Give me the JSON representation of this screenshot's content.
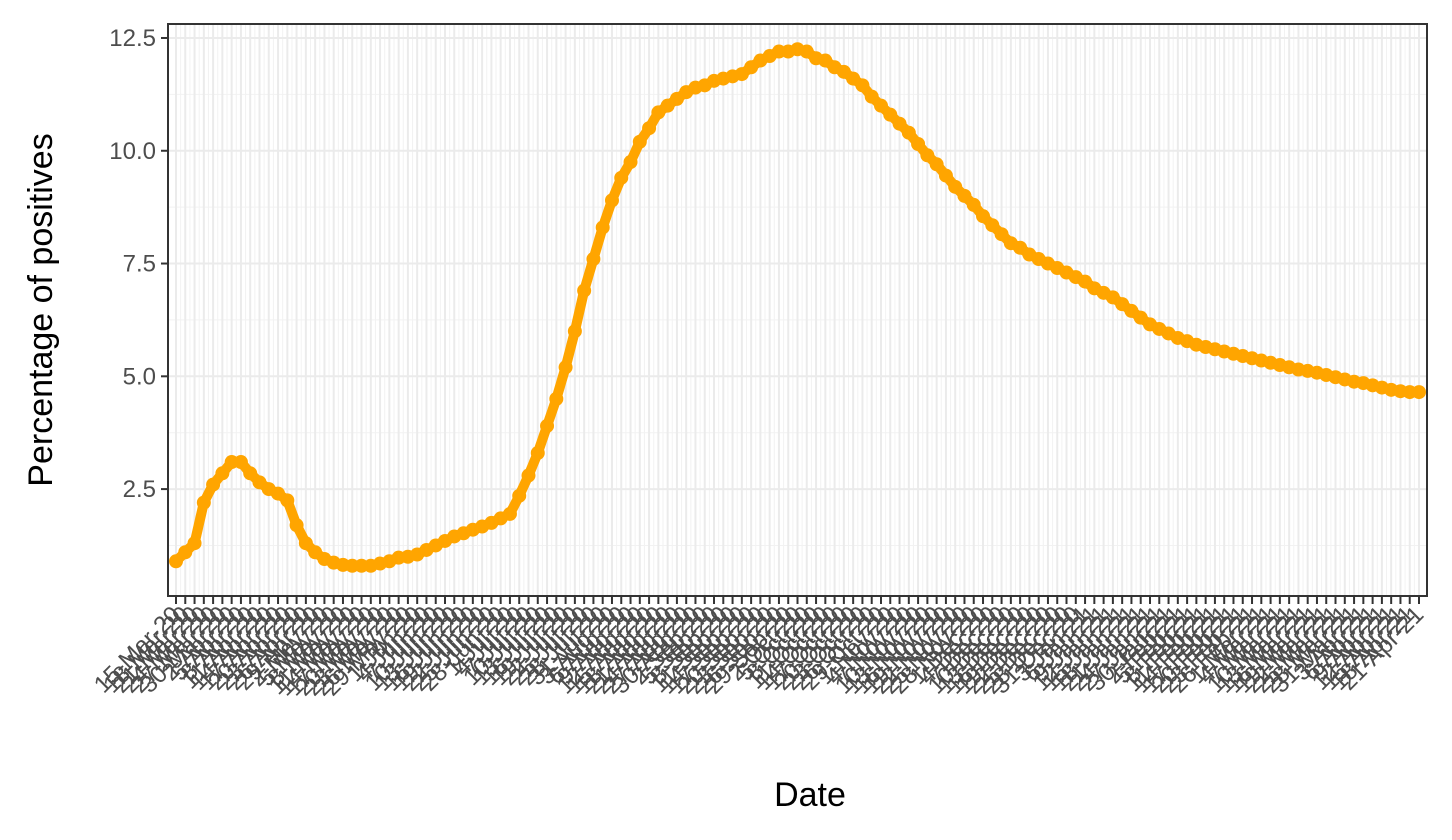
{
  "chart_data": {
    "type": "line",
    "x_label": "Date",
    "y_label": "Percentage of positives",
    "color": "#ffa500",
    "grid": true,
    "categories": [
      "15-Mar-20",
      "18-Mar-20",
      "21-Mar-20",
      "24-Mar-20",
      "27-Mar-20",
      "30-Mar-20",
      "2-Apr-20",
      "5-Apr-20",
      "8-Apr-20",
      "11-Apr-20",
      "14-Apr-20",
      "17-Apr-20",
      "20-Apr-20",
      "23-Apr-20",
      "26-Apr-20",
      "29-Apr-20",
      "2-May-20",
      "5-May-20",
      "8-May-20",
      "11-May-20",
      "14-May-20",
      "17-May-20",
      "20-May-20",
      "23-May-20",
      "26-May-20",
      "29-May-20",
      "1-Jun-20",
      "4-Jun-20",
      "7-Jun-20",
      "10-Jun-20",
      "13-Jun-20",
      "16-Jun-20",
      "19-Jun-20",
      "22-Jun-20",
      "25-Jun-20",
      "28-Jun-20",
      "1-Jul-20",
      "4-Jul-20",
      "7-Jul-20",
      "10-Jul-20",
      "13-Jul-20",
      "16-Jul-20",
      "19-Jul-20",
      "22-Jul-20",
      "25-Jul-20",
      "28-Jul-20",
      "31-Jul-20",
      "3-Aug-20",
      "6-Aug-20",
      "9-Aug-20",
      "12-Aug-20",
      "15-Aug-20",
      "18-Aug-20",
      "21-Aug-20",
      "24-Aug-20",
      "27-Aug-20",
      "30-Aug-20",
      "2-Sep-20",
      "5-Sep-20",
      "8-Sep-20",
      "11-Sep-20",
      "14-Sep-20",
      "17-Sep-20",
      "20-Sep-20",
      "23-Sep-20",
      "26-Sep-20",
      "29-Sep-20",
      "2-Oct-20",
      "5-Oct-20",
      "8-Oct-20",
      "11-Oct-20",
      "14-Oct-20",
      "17-Oct-20",
      "20-Oct-20",
      "23-Oct-20",
      "26-Oct-20",
      "29-Oct-20",
      "1-Nov-20",
      "4-Nov-20",
      "7-Nov-20",
      "10-Nov-20",
      "13-Nov-20",
      "16-Nov-20",
      "19-Nov-20",
      "22-Nov-20",
      "25-Nov-20",
      "28-Nov-20",
      "1-Dec-20",
      "4-Dec-20",
      "7-Dec-20",
      "10-Dec-20",
      "13-Dec-20",
      "16-Dec-20",
      "19-Dec-20",
      "22-Dec-20",
      "25-Dec-20",
      "28-Dec-20",
      "31-Dec-20",
      "3-Jan-21",
      "6-Jan-21",
      "9-Jan-21",
      "12-Jan-21",
      "15-Jan-21",
      "18-Jan-21",
      "21-Jan-21",
      "24-Jan-21",
      "27-Jan-21",
      "30-Jan-21",
      "2-Feb-21",
      "5-Feb-21",
      "8-Feb-21",
      "11-Feb-21",
      "14-Feb-21",
      "17-Feb-21",
      "20-Feb-21",
      "23-Feb-21",
      "26-Feb-21",
      "1-Mar-21",
      "4-Mar-21",
      "7-Mar-21",
      "10-Mar-21",
      "13-Mar-21",
      "16-Mar-21",
      "19-Mar-21",
      "22-Mar-21",
      "25-Mar-21",
      "28-Mar-21",
      "31-Mar-21",
      "3-Apr-21",
      "6-Apr-21",
      "9-Apr-21",
      "12-Apr-21",
      "15-Apr-21",
      "18-Apr-21",
      "21-Apr-21"
    ],
    "values": [
      0.9,
      1.1,
      1.3,
      2.2,
      2.6,
      2.85,
      3.1,
      3.1,
      2.85,
      2.65,
      2.5,
      2.4,
      2.25,
      1.7,
      1.3,
      1.1,
      0.95,
      0.87,
      0.82,
      0.8,
      0.8,
      0.8,
      0.85,
      0.9,
      0.98,
      1.0,
      1.05,
      1.15,
      1.25,
      1.35,
      1.45,
      1.52,
      1.6,
      1.67,
      1.75,
      1.85,
      1.95,
      2.35,
      2.8,
      3.3,
      3.9,
      4.5,
      5.2,
      6.0,
      6.9,
      7.6,
      8.3,
      8.9,
      9.4,
      9.75,
      10.2,
      10.5,
      10.85,
      11.0,
      11.15,
      11.3,
      11.4,
      11.45,
      11.55,
      11.6,
      11.65,
      11.7,
      11.85,
      12.0,
      12.1,
      12.2,
      12.2,
      12.25,
      12.2,
      12.05,
      12.0,
      11.85,
      11.75,
      11.6,
      11.45,
      11.2,
      11.0,
      10.8,
      10.6,
      10.4,
      10.15,
      9.9,
      9.7,
      9.45,
      9.2,
      9.0,
      8.8,
      8.55,
      8.35,
      8.15,
      7.95,
      7.85,
      7.7,
      7.6,
      7.5,
      7.4,
      7.3,
      7.2,
      7.1,
      6.95,
      6.85,
      6.75,
      6.6,
      6.45,
      6.3,
      6.15,
      6.05,
      5.95,
      5.85,
      5.78,
      5.7,
      5.65,
      5.6,
      5.55,
      5.5,
      5.45,
      5.4,
      5.35,
      5.3,
      5.25,
      5.2,
      5.15,
      5.12,
      5.08,
      5.03,
      4.98,
      4.93,
      4.88,
      4.85,
      4.8,
      4.75,
      4.7,
      4.67,
      4.65,
      4.65
    ],
    "ylim": [
      0.13,
      12.81
    ],
    "yticks": [
      2.5,
      {
        "value": 5,
        "label": "5.0"
      },
      {
        "value": 7.5,
        "label": "7.5"
      },
      {
        "value": 10,
        "label": "10.0"
      },
      12.5
    ]
  }
}
